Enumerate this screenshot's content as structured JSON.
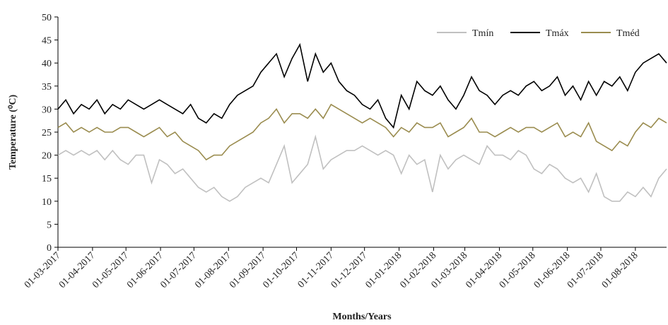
{
  "chart_data": {
    "type": "line",
    "x_label": "Months/Years",
    "y_label": "Temperature (⁰C)",
    "x": [
      "01-03-2017",
      "08-03-2017",
      "15-03-2017",
      "22-03-2017",
      "29-03-2017",
      "05-04-2017",
      "12-04-2017",
      "19-04-2017",
      "26-04-2017",
      "03-05-2017",
      "10-05-2017",
      "17-05-2017",
      "24-05-2017",
      "31-05-2017",
      "07-06-2017",
      "14-06-2017",
      "21-06-2017",
      "28-06-2017",
      "05-07-2017",
      "12-07-2017",
      "19-07-2017",
      "26-07-2017",
      "02-08-2017",
      "09-08-2017",
      "16-08-2017",
      "23-08-2017",
      "30-08-2017",
      "06-09-2017",
      "13-09-2017",
      "20-09-2017",
      "27-09-2017",
      "04-10-2017",
      "11-10-2017",
      "18-10-2017",
      "25-10-2017",
      "01-11-2017",
      "08-11-2017",
      "15-11-2017",
      "22-11-2017",
      "29-11-2017",
      "06-12-2017",
      "13-12-2017",
      "20-12-2017",
      "27-12-2017",
      "03-01-2018",
      "10-01-2018",
      "17-01-2018",
      "24-01-2018",
      "31-01-2018",
      "07-02-2018",
      "14-02-2018",
      "21-02-2018",
      "28-02-2018",
      "07-03-2018",
      "14-03-2018",
      "21-03-2018",
      "28-03-2018",
      "04-04-2018",
      "11-04-2018",
      "18-04-2018",
      "25-04-2018",
      "02-05-2018",
      "09-05-2018",
      "16-05-2018",
      "23-05-2018",
      "30-05-2018",
      "06-06-2018",
      "13-06-2018",
      "20-06-2018",
      "27-06-2018",
      "04-07-2018",
      "11-07-2018",
      "18-07-2018",
      "25-07-2018",
      "01-08-2018",
      "08-08-2018",
      "15-08-2018",
      "22-08-2018",
      "29-08-2018"
    ],
    "series": [
      {
        "name": "Tmín",
        "color": "#c0c0c0",
        "values": [
          20,
          21,
          20,
          21,
          20,
          21,
          19,
          21,
          19,
          18,
          20,
          20,
          14,
          19,
          18,
          16,
          17,
          15,
          13,
          12,
          13,
          11,
          10,
          11,
          13,
          14,
          15,
          14,
          18,
          22,
          14,
          16,
          18,
          24,
          17,
          19,
          20,
          21,
          21,
          22,
          21,
          20,
          21,
          20,
          16,
          20,
          18,
          19,
          12,
          20,
          17,
          19,
          20,
          19,
          18,
          22,
          20,
          20,
          19,
          21,
          20,
          17,
          16,
          18,
          17,
          15,
          14,
          15,
          12,
          16,
          11,
          10,
          10,
          12,
          11,
          13,
          11,
          15,
          17
        ]
      },
      {
        "name": "Tmáx",
        "color": "#000000",
        "values": [
          30,
          32,
          29,
          31,
          30,
          32,
          29,
          31,
          30,
          32,
          31,
          30,
          31,
          32,
          31,
          30,
          29,
          31,
          28,
          27,
          29,
          28,
          31,
          33,
          34,
          35,
          38,
          40,
          42,
          37,
          41,
          44,
          36,
          42,
          38,
          40,
          36,
          34,
          33,
          31,
          30,
          32,
          28,
          26,
          33,
          30,
          36,
          34,
          33,
          35,
          32,
          30,
          33,
          37,
          34,
          33,
          31,
          33,
          34,
          33,
          35,
          36,
          34,
          35,
          37,
          33,
          35,
          32,
          36,
          33,
          36,
          35,
          37,
          34,
          38,
          40,
          41,
          42,
          40
        ]
      },
      {
        "name": "Tméd",
        "color": "#9a8c4f",
        "values": [
          26,
          27,
          25,
          26,
          25,
          26,
          25,
          25,
          26,
          26,
          25,
          24,
          25,
          26,
          24,
          25,
          23,
          22,
          21,
          19,
          20,
          20,
          22,
          23,
          24,
          25,
          27,
          28,
          30,
          27,
          29,
          29,
          28,
          30,
          28,
          31,
          30,
          29,
          28,
          27,
          28,
          27,
          26,
          24,
          26,
          25,
          27,
          26,
          26,
          27,
          24,
          25,
          26,
          28,
          25,
          25,
          24,
          25,
          26,
          25,
          26,
          26,
          25,
          26,
          27,
          24,
          25,
          24,
          27,
          23,
          22,
          21,
          23,
          22,
          25,
          27,
          26,
          28,
          27
        ]
      }
    ],
    "xlim": [
      "01-03-2017",
      "29-08-2018"
    ],
    "xticks": [
      "01-03-2017",
      "01-04-2017",
      "01-05-2017",
      "01-06-2017",
      "01-07-2017",
      "01-08-2017",
      "01-09-2017",
      "01-10-2017",
      "01-11-2017",
      "01-12-2017",
      "01-01-2018",
      "01-02-2018",
      "01-03-2018",
      "01-04-2018",
      "01-05-2018",
      "01-06-2018",
      "01-07-2018",
      "01-08-2018"
    ],
    "ylim": [
      0,
      50
    ],
    "yticks": [
      0,
      5,
      10,
      15,
      20,
      25,
      30,
      35,
      40,
      45,
      50
    ],
    "legend": "top-right"
  }
}
